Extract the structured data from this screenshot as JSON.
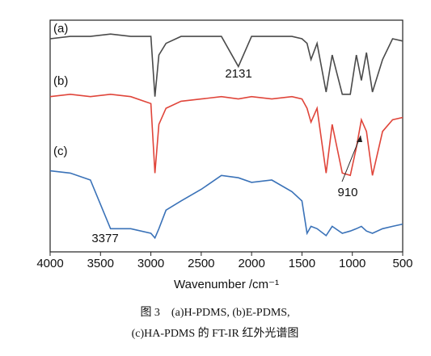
{
  "chart_data": {
    "type": "line",
    "xlabel": "Wavenumber /cm⁻¹",
    "x": [
      4000,
      3800,
      3600,
      3400,
      3200,
      3000,
      2960,
      2920,
      2850,
      2700,
      2500,
      2300,
      2131,
      2000,
      1800,
      1600,
      1500,
      1450,
      1410,
      1350,
      1260,
      1200,
      1100,
      1020,
      960,
      910,
      860,
      800,
      700,
      600,
      500
    ],
    "series": [
      {
        "name": "(a)",
        "color": "#4a4a4a",
        "values": [
          92,
          93,
          93,
          94,
          93,
          93,
          67,
          85,
          90,
          93,
          93,
          93,
          80,
          93,
          93,
          93,
          92,
          90,
          83,
          90,
          69,
          85,
          68,
          68,
          85,
          74,
          86,
          69,
          83,
          92,
          91
        ]
      },
      {
        "name": "(b)",
        "color": "#e0453a",
        "values": [
          67,
          68,
          67,
          68,
          67,
          64,
          34,
          55,
          62,
          65,
          66,
          67,
          66,
          67,
          66,
          67,
          66,
          62,
          56,
          62,
          34,
          55,
          34,
          33,
          45,
          57,
          52,
          33,
          52,
          57,
          58
        ]
      },
      {
        "name": "(c)",
        "color": "#3a72b8",
        "values": [
          35,
          34,
          31,
          10,
          10,
          8,
          6,
          10,
          18,
          22,
          27,
          33,
          32,
          30,
          31,
          26,
          22,
          8,
          11,
          10,
          7,
          11,
          8,
          9,
          10,
          11,
          9,
          8,
          10,
          11,
          12
        ]
      }
    ],
    "xlim": [
      4000,
      500
    ],
    "ylim": [
      0,
      100
    ],
    "xticks": [
      4000,
      3500,
      3000,
      2500,
      2000,
      1500,
      1000,
      500
    ],
    "annotations": [
      "2131",
      "910",
      "3377"
    ],
    "caption": [
      "图 3　(a)H-PDMS, (b)E-PDMS,",
      "(c)HA-PDMS 的 FT-IR 红外光谱图"
    ]
  }
}
